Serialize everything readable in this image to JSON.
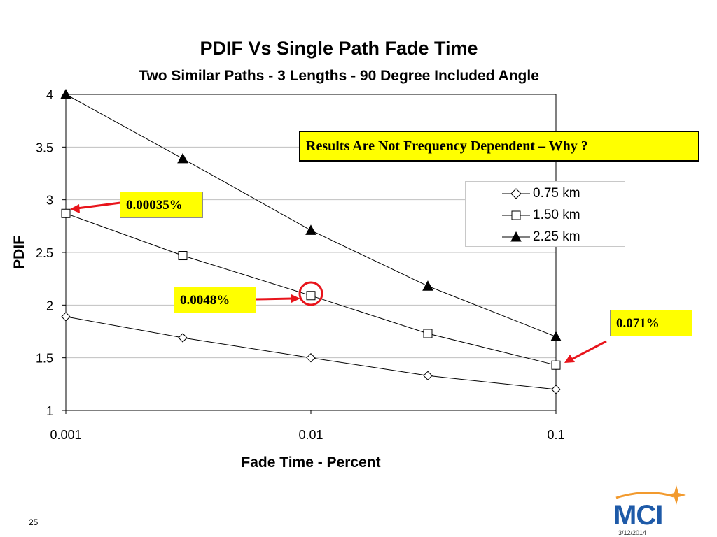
{
  "chart_data": {
    "type": "line",
    "title": "PDIF Vs Single Path Fade Time",
    "subtitle": "Two Similar Paths - 3 Lengths - 90 Degree Included Angle",
    "xlabel": "Fade Time - Percent",
    "ylabel": "PDIF",
    "x_scale": "log",
    "xlim": [
      0.001,
      0.1
    ],
    "ylim": [
      1,
      4
    ],
    "x_ticks": [
      0.001,
      0.01,
      0.1
    ],
    "x_tick_labels": [
      "0.001",
      "0.01",
      "0.1"
    ],
    "y_ticks": [
      1,
      1.5,
      2,
      2.5,
      3,
      3.5,
      4
    ],
    "y_tick_labels": [
      "1",
      "1.5",
      "2",
      "2.5",
      "3",
      "3.5",
      "4"
    ],
    "grid": "horizontal",
    "legend_position": "right",
    "series": [
      {
        "name": "0.75 km",
        "marker": "diamond",
        "x": [
          0.001,
          0.003,
          0.01,
          0.03,
          0.1
        ],
        "y": [
          1.89,
          1.69,
          1.5,
          1.33,
          1.2
        ]
      },
      {
        "name": "1.50 km",
        "marker": "square",
        "x": [
          0.001,
          0.003,
          0.01,
          0.03,
          0.1
        ],
        "y": [
          2.87,
          2.47,
          2.09,
          1.73,
          1.43
        ]
      },
      {
        "name": "2.25 km",
        "marker": "triangle",
        "x": [
          0.001,
          0.003,
          0.01,
          0.03,
          0.1
        ],
        "y": [
          4.0,
          3.39,
          2.71,
          2.18,
          1.7
        ]
      }
    ],
    "annotations": {
      "note": "Results Are Not Frequency Dependent – Why ?",
      "callout_1": "0.00035%",
      "callout_2": "0.0048%",
      "callout_3": "0.071%"
    }
  },
  "slide_number": "25",
  "date": "3/12/2014",
  "logo_text": "MCI",
  "colors": {
    "callout_bg": "#ffff00",
    "arrow": "#e8141b",
    "line": "#000000",
    "logo_blue": "#1e5aa8",
    "logo_orange": "#f29a2e"
  }
}
